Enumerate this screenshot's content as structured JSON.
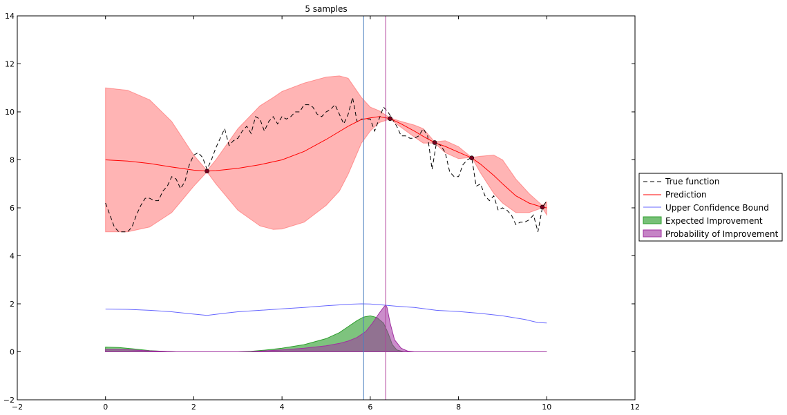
{
  "chart_data": {
    "type": "line",
    "title": "5 samples",
    "xlabel": "",
    "ylabel": "",
    "xlim": [
      -2,
      12
    ],
    "ylim": [
      -2,
      14
    ],
    "xticks": [
      -2,
      0,
      2,
      4,
      6,
      8,
      10,
      12
    ],
    "yticks": [
      -2,
      0,
      2,
      4,
      6,
      8,
      10,
      12,
      14
    ],
    "grid": false,
    "legend_position": "right, outside plot",
    "colors": {
      "true_function": "#000000",
      "prediction": "#ff0000",
      "confidence_band": "#ff4d4d",
      "ucb": "#6666ff",
      "ei": "#2e9e2e",
      "pi": "#a030a0",
      "vline_ei": "#4a7fbf",
      "vline_pi": "#b0409a"
    },
    "series": [
      {
        "name": "True function",
        "style": "dashed",
        "x": [
          0,
          0.1,
          0.2,
          0.3,
          0.4,
          0.5,
          0.6,
          0.7,
          0.8,
          0.9,
          1.0,
          1.1,
          1.2,
          1.3,
          1.4,
          1.5,
          1.6,
          1.7,
          1.8,
          1.9,
          2.0,
          2.1,
          2.2,
          2.3,
          2.4,
          2.5,
          2.6,
          2.7,
          2.8,
          2.9,
          3.0,
          3.1,
          3.2,
          3.3,
          3.4,
          3.5,
          3.6,
          3.7,
          3.8,
          3.9,
          4.0,
          4.1,
          4.2,
          4.3,
          4.4,
          4.5,
          4.6,
          4.7,
          4.8,
          4.9,
          5.0,
          5.1,
          5.2,
          5.3,
          5.4,
          5.5,
          5.6,
          5.7,
          5.8,
          5.9,
          6.0,
          6.1,
          6.2,
          6.3,
          6.4,
          6.5,
          6.6,
          6.7,
          6.8,
          6.9,
          7.0,
          7.1,
          7.2,
          7.3,
          7.4,
          7.5,
          7.6,
          7.7,
          7.8,
          7.9,
          8.0,
          8.1,
          8.2,
          8.3,
          8.4,
          8.5,
          8.6,
          8.7,
          8.8,
          8.9,
          9.0,
          9.1,
          9.2,
          9.3,
          9.4,
          9.5,
          9.6,
          9.7,
          9.8,
          9.9,
          10.0
        ],
        "y": [
          6.2,
          5.7,
          5.2,
          5.0,
          5.0,
          5.0,
          5.2,
          5.7,
          6.1,
          6.4,
          6.4,
          6.3,
          6.3,
          6.7,
          6.9,
          7.3,
          7.2,
          6.8,
          7.1,
          7.8,
          8.2,
          8.3,
          8.1,
          7.6,
          8.0,
          8.5,
          8.9,
          9.3,
          8.6,
          8.8,
          8.9,
          9.2,
          9.4,
          9.1,
          9.8,
          9.7,
          9.2,
          9.6,
          9.8,
          9.5,
          9.8,
          9.7,
          9.8,
          10.0,
          10.0,
          10.3,
          10.3,
          10.2,
          9.9,
          9.8,
          10.0,
          10.1,
          10.3,
          9.9,
          9.5,
          9.9,
          10.6,
          9.6,
          9.7,
          9.7,
          9.7,
          9.2,
          9.7,
          10.2,
          10.0,
          9.7,
          9.4,
          9.0,
          9.0,
          8.9,
          8.9,
          9.0,
          9.3,
          9.0,
          7.6,
          8.7,
          8.6,
          8.3,
          7.5,
          7.3,
          7.3,
          7.8,
          8.0,
          8.1,
          6.9,
          7.0,
          6.5,
          6.3,
          6.5,
          5.9,
          6.0,
          5.9,
          5.7,
          5.3,
          5.4,
          5.4,
          5.5,
          5.7,
          5.0,
          6.0,
          6.3
        ]
      },
      {
        "name": "Prediction",
        "style": "solid",
        "x": [
          0,
          0.5,
          1.0,
          1.5,
          2.0,
          2.3,
          2.5,
          3.0,
          3.5,
          4.0,
          4.5,
          5.0,
          5.5,
          5.8,
          6.0,
          6.2,
          6.45,
          6.7,
          7.0,
          7.2,
          7.46,
          7.7,
          8.0,
          8.3,
          8.5,
          8.8,
          9.0,
          9.3,
          9.6,
          9.9,
          10.0
        ],
        "y": [
          8.0,
          7.95,
          7.85,
          7.7,
          7.57,
          7.53,
          7.55,
          7.65,
          7.8,
          8.0,
          8.35,
          8.85,
          9.4,
          9.68,
          9.75,
          9.8,
          9.72,
          9.5,
          9.2,
          8.98,
          8.72,
          8.56,
          8.32,
          8.08,
          7.82,
          7.35,
          7.0,
          6.5,
          6.2,
          6.03,
          6.0
        ]
      },
      {
        "name": "Upper Confidence Bound",
        "style": "solid",
        "x": [
          0,
          0.5,
          1.0,
          1.5,
          2.0,
          2.3,
          2.7,
          3.0,
          3.5,
          4.0,
          4.5,
          5.0,
          5.5,
          5.8,
          6.0,
          6.3,
          6.6,
          7.0,
          7.5,
          8.0,
          8.5,
          9.0,
          9.5,
          9.8,
          10.0
        ],
        "y": [
          1.78,
          1.77,
          1.73,
          1.67,
          1.57,
          1.52,
          1.61,
          1.67,
          1.73,
          1.79,
          1.85,
          1.92,
          1.98,
          2.0,
          1.99,
          1.95,
          1.9,
          1.85,
          1.73,
          1.68,
          1.6,
          1.5,
          1.35,
          1.22,
          1.2
        ]
      },
      {
        "name": "Expected Improvement",
        "style": "area",
        "x": [
          0,
          0.3,
          0.6,
          1.0,
          1.3,
          1.6,
          2.0,
          2.5,
          3.0,
          3.3,
          3.6,
          4.0,
          4.5,
          5.0,
          5.3,
          5.5,
          5.7,
          5.85,
          6.0,
          6.15,
          6.3,
          6.4,
          6.5,
          6.6,
          6.75,
          7.0,
          8.0,
          9.0,
          10.0
        ],
        "y": [
          0.2,
          0.18,
          0.13,
          0.05,
          0.02,
          0.0,
          0.0,
          0.0,
          0.0,
          0.02,
          0.07,
          0.15,
          0.3,
          0.55,
          0.8,
          1.05,
          1.3,
          1.45,
          1.5,
          1.43,
          1.2,
          0.8,
          0.3,
          0.08,
          0.01,
          0.0,
          0.0,
          0.0,
          0.0
        ]
      },
      {
        "name": "Probability of Improvement",
        "style": "area",
        "x": [
          0,
          0.3,
          0.6,
          1.0,
          1.3,
          1.6,
          2.0,
          2.5,
          3.0,
          3.3,
          3.6,
          4.0,
          4.5,
          5.0,
          5.3,
          5.5,
          5.7,
          5.9,
          6.05,
          6.2,
          6.3,
          6.35,
          6.38,
          6.45,
          6.55,
          6.7,
          6.85,
          7.0,
          8.0,
          9.0,
          10.0
        ],
        "y": [
          0.1,
          0.1,
          0.08,
          0.04,
          0.02,
          0.0,
          0.0,
          0.0,
          0.0,
          0.01,
          0.04,
          0.08,
          0.15,
          0.25,
          0.35,
          0.45,
          0.6,
          0.85,
          1.2,
          1.6,
          1.85,
          1.95,
          1.85,
          1.2,
          0.5,
          0.15,
          0.03,
          0.0,
          0.0,
          0.0,
          0.0
        ]
      }
    ],
    "confidence_band": {
      "x": [
        0,
        0.5,
        1.0,
        1.5,
        2.0,
        2.3,
        2.5,
        3.0,
        3.5,
        3.8,
        4.0,
        4.5,
        5.0,
        5.3,
        5.5,
        5.8,
        6.0,
        6.2,
        6.45,
        6.7,
        7.0,
        7.2,
        7.46,
        7.7,
        8.0,
        8.3,
        8.5,
        8.8,
        9.0,
        9.3,
        9.6,
        9.9,
        10.0
      ],
      "lower": [
        5.0,
        5.0,
        5.2,
        5.8,
        6.9,
        7.5,
        7.0,
        5.9,
        5.25,
        5.1,
        5.12,
        5.4,
        6.1,
        6.7,
        7.4,
        8.7,
        9.2,
        9.55,
        9.7,
        9.35,
        8.95,
        8.7,
        8.7,
        8.3,
        8.05,
        8.1,
        7.45,
        6.6,
        6.2,
        5.8,
        5.8,
        6.0,
        5.7
      ],
      "upper": [
        11.0,
        10.9,
        10.5,
        9.6,
        8.2,
        7.55,
        8.0,
        9.3,
        10.25,
        10.6,
        10.85,
        11.2,
        11.45,
        11.5,
        11.4,
        10.6,
        10.2,
        10.05,
        9.75,
        9.6,
        9.45,
        9.3,
        8.75,
        8.8,
        8.55,
        8.1,
        8.15,
        8.2,
        8.0,
        7.2,
        6.6,
        6.1,
        6.25
      ]
    },
    "samples": {
      "x": [
        2.3,
        6.45,
        7.46,
        8.3,
        9.9
      ],
      "y": [
        7.53,
        9.72,
        8.72,
        8.08,
        6.03
      ]
    },
    "vlines": [
      {
        "x": 5.85
      },
      {
        "x": 6.35
      }
    ]
  }
}
